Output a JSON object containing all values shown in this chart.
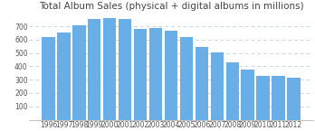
{
  "title": "Total Album Sales (physical + digital albums in millions)",
  "years": [
    1996,
    1997,
    1998,
    1999,
    2000,
    2001,
    2002,
    2003,
    2004,
    2005,
    2006,
    2007,
    2008,
    2009,
    2010,
    2011,
    2012
  ],
  "values": [
    619,
    651,
    707,
    754,
    762,
    752,
    681,
    687,
    666,
    619,
    548,
    501,
    428,
    374,
    326,
    331,
    316
  ],
  "bar_color": "#6aaee8",
  "background_color": "#ffffff",
  "ylim": [
    0,
    800
  ],
  "yticks": [
    100,
    200,
    300,
    400,
    500,
    600,
    700
  ],
  "grid_color": "#c8d8e8",
  "title_fontsize": 7.5,
  "tick_fontsize": 5.5
}
